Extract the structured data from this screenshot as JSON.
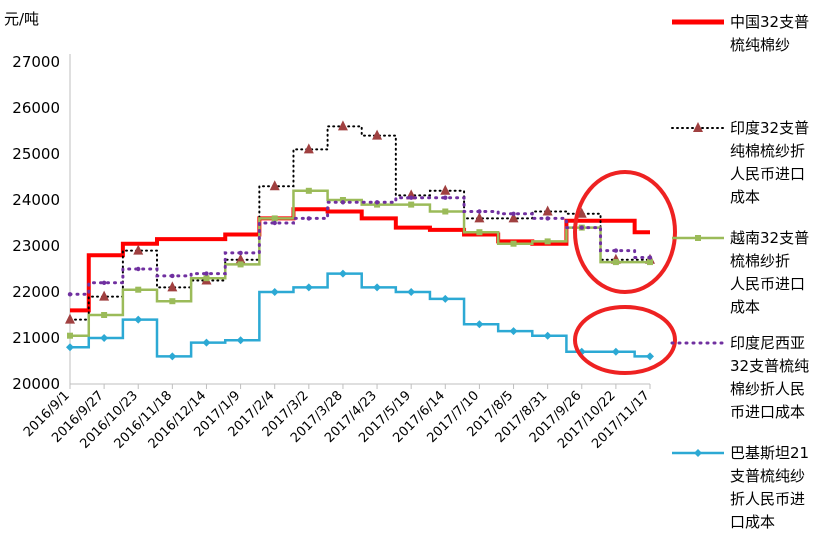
{
  "chart_data": {
    "type": "line",
    "title": "",
    "ylabel": "元/吨",
    "xlabel": "",
    "ylim": [
      20000,
      27000
    ],
    "yticks": [
      20000,
      21000,
      22000,
      23000,
      24000,
      25000,
      26000,
      27000
    ],
    "x": [
      "2016/9/1",
      "2016/9/27",
      "2016/10/23",
      "2016/11/18",
      "2016/12/14",
      "2017/1/9",
      "2017/2/4",
      "2017/3/2",
      "2017/3/28",
      "2017/4/23",
      "2017/5/19",
      "2017/6/14",
      "2017/7/10",
      "2017/8/5",
      "2017/8/31",
      "2017/9/26",
      "2017/10/22",
      "2017/11/17"
    ],
    "legend_position": "right",
    "grid": false,
    "series": [
      {
        "name": "中国32支普梳纯棉纱",
        "color": "#FF0000",
        "style": "line",
        "values": [
          21600,
          22800,
          23050,
          23150,
          23150,
          23250,
          23600,
          23800,
          23750,
          23600,
          23400,
          23350,
          23250,
          23100,
          23050,
          23550,
          23550,
          23300
        ]
      },
      {
        "name": "印度32支普纯棉梳纱折人民币进口成本",
        "color": "#A04040",
        "style": "dotted-triangle",
        "values": [
          21400,
          21900,
          22900,
          22100,
          22250,
          22700,
          24300,
          25100,
          25600,
          25400,
          24100,
          24200,
          23600,
          23600,
          23750,
          23700,
          22700,
          22700
        ]
      },
      {
        "name": "越南32支普梳棉纱折人民币进口成本",
        "color": "#9BBB59",
        "style": "line-square",
        "values": [
          21050,
          21500,
          22050,
          21800,
          22300,
          22600,
          23600,
          24200,
          24000,
          23900,
          23900,
          23750,
          23300,
          23050,
          23100,
          23400,
          22650,
          22650
        ]
      },
      {
        "name": "印度尼西亚32支普梳纯棉纱折人民币进口成本",
        "color": "#7030A0",
        "style": "dotted",
        "values": [
          21950,
          22200,
          22500,
          22350,
          22400,
          22850,
          23500,
          23600,
          23950,
          23950,
          24050,
          24050,
          23750,
          23700,
          23600,
          23400,
          22900,
          22750
        ]
      },
      {
        "name": "巴基斯坦21支普梳纯纱折人民币进口成本",
        "color": "#2CA9D4",
        "style": "line-diamond",
        "values": [
          20800,
          21000,
          21400,
          20600,
          20900,
          20950,
          22000,
          22100,
          22400,
          22100,
          22000,
          21850,
          21300,
          21150,
          21050,
          20700,
          20700,
          20600
        ]
      }
    ]
  },
  "legend": {
    "items": [
      {
        "lines": [
          "中国32支普",
          "梳纯棉纱"
        ]
      },
      {
        "lines": [
          "印度32支普",
          "纯棉梳纱折",
          "人民币进口",
          "成本"
        ]
      },
      {
        "lines": [
          "越南32支普",
          "梳棉纱折",
          "人民币进口",
          "成本"
        ]
      },
      {
        "lines": [
          "印度尼西亚",
          "32支普梳纯",
          "棉纱折人民",
          "币进口成本"
        ]
      },
      {
        "lines": [
          "巴基斯坦21",
          "支普梳纯纱",
          "折人民币进",
          "口成本"
        ]
      }
    ]
  },
  "annotations": {
    "circle_color": "#EE2222"
  }
}
